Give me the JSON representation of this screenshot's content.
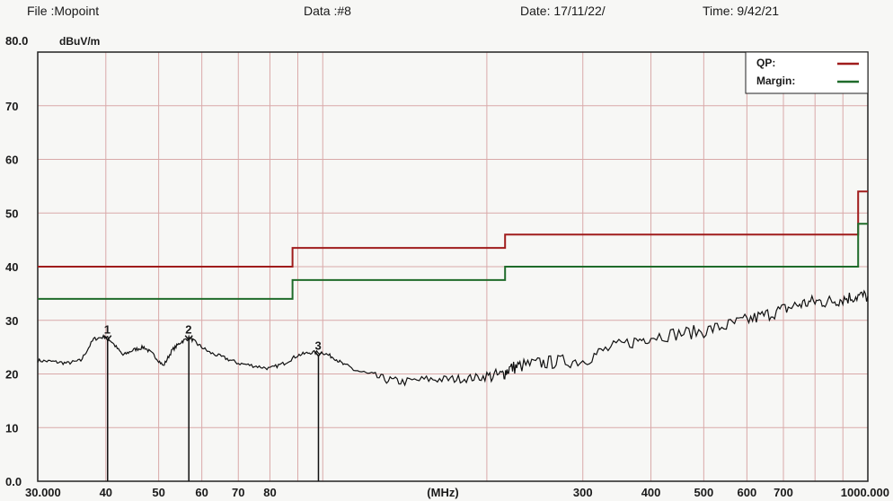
{
  "header": {
    "file": "File :Mopoint",
    "data": "Data :#8",
    "date": "Date: 17/11/22/",
    "time": "Time: 9/42/21"
  },
  "chart_data": {
    "type": "line",
    "ylabel": "dBuV/m",
    "xlabel": "(MHz)",
    "x_scale": "log",
    "xlim": [
      30,
      1000
    ],
    "ylim": [
      0,
      80
    ],
    "grid": true,
    "legend_position": "top-right",
    "y_tick_labels": [
      {
        "value": 80,
        "label": "80.0"
      },
      {
        "value": 70,
        "label": "70"
      },
      {
        "value": 60,
        "label": "60"
      },
      {
        "value": 50,
        "label": "50"
      },
      {
        "value": 40,
        "label": "40"
      },
      {
        "value": 30,
        "label": "30"
      },
      {
        "value": 20,
        "label": "20"
      },
      {
        "value": 10,
        "label": "10"
      },
      {
        "value": 0,
        "label": "0.0"
      }
    ],
    "x_tick_labels": [
      {
        "value": 30,
        "label": "30.000"
      },
      {
        "value": 40,
        "label": "40"
      },
      {
        "value": 50,
        "label": "50"
      },
      {
        "value": 60,
        "label": "60"
      },
      {
        "value": 70,
        "label": "70"
      },
      {
        "value": 80,
        "label": "80"
      },
      {
        "value": 300,
        "label": "300"
      },
      {
        "value": 400,
        "label": "400"
      },
      {
        "value": 500,
        "label": "500"
      },
      {
        "value": 600,
        "label": "600"
      },
      {
        "value": 700,
        "label": "700"
      },
      {
        "value": 1000,
        "label": "1000.000"
      }
    ],
    "x_gridlines": [
      30,
      40,
      50,
      60,
      70,
      80,
      90,
      100,
      200,
      300,
      400,
      500,
      600,
      700,
      800,
      900,
      1000
    ],
    "y_gridlines": [
      0,
      10,
      20,
      30,
      40,
      50,
      60,
      70,
      80
    ],
    "series": [
      {
        "name": "QP:",
        "color": "#a01c1c",
        "step": true,
        "points": [
          [
            30,
            40
          ],
          [
            88,
            40
          ],
          [
            88,
            43.5
          ],
          [
            216,
            43.5
          ],
          [
            216,
            46
          ],
          [
            960,
            46
          ],
          [
            960,
            54
          ],
          [
            1000,
            54
          ]
        ]
      },
      {
        "name": "Margin:",
        "color": "#1f6b2a",
        "step": true,
        "points": [
          [
            30,
            34
          ],
          [
            88,
            34
          ],
          [
            88,
            37.5
          ],
          [
            216,
            37.5
          ],
          [
            216,
            40
          ],
          [
            960,
            40
          ],
          [
            960,
            48
          ],
          [
            1000,
            48
          ]
        ]
      },
      {
        "color": "#111111",
        "noisy": true,
        "points": [
          [
            30,
            22.5
          ],
          [
            32,
            22.3
          ],
          [
            34,
            22.0
          ],
          [
            36,
            22.5
          ],
          [
            38,
            26.5
          ],
          [
            40,
            27.0
          ],
          [
            41,
            26.0
          ],
          [
            43,
            23.5
          ],
          [
            45,
            24.5
          ],
          [
            47,
            25.0
          ],
          [
            49,
            23.5
          ],
          [
            51,
            21.5
          ],
          [
            53,
            24.5
          ],
          [
            55,
            26.0
          ],
          [
            57,
            26.8
          ],
          [
            59,
            25.5
          ],
          [
            62,
            24.0
          ],
          [
            66,
            23.0
          ],
          [
            70,
            22.0
          ],
          [
            75,
            21.5
          ],
          [
            80,
            21.0
          ],
          [
            85,
            22.0
          ],
          [
            90,
            23.5
          ],
          [
            95,
            24.0
          ],
          [
            100,
            24.0
          ],
          [
            105,
            23.0
          ],
          [
            110,
            21.5
          ],
          [
            120,
            20.0
          ],
          [
            130,
            19.0
          ],
          [
            140,
            18.5
          ],
          [
            155,
            19.0
          ],
          [
            170,
            19.0
          ],
          [
            185,
            19.2
          ],
          [
            200,
            19.5
          ],
          [
            213,
            19.8
          ],
          [
            220,
            21.0
          ],
          [
            230,
            21.5
          ],
          [
            250,
            22.0
          ],
          [
            270,
            22.3
          ],
          [
            300,
            22.5
          ],
          [
            330,
            24.5
          ],
          [
            370,
            26.0
          ],
          [
            400,
            27.0
          ],
          [
            450,
            27.5
          ],
          [
            500,
            28.0
          ],
          [
            550,
            29.0
          ],
          [
            600,
            30.0
          ],
          [
            650,
            31.0
          ],
          [
            700,
            32.0
          ],
          [
            750,
            33.0
          ],
          [
            800,
            33.5
          ],
          [
            850,
            33.5
          ],
          [
            900,
            34.0
          ],
          [
            950,
            34.5
          ],
          [
            1000,
            34.5
          ]
        ]
      }
    ],
    "markers": [
      {
        "label": "1",
        "x": 40.3,
        "y": 26.5
      },
      {
        "label": "2",
        "x": 56.8,
        "y": 26.5
      },
      {
        "label": "3",
        "x": 98.2,
        "y": 23.5
      }
    ]
  }
}
